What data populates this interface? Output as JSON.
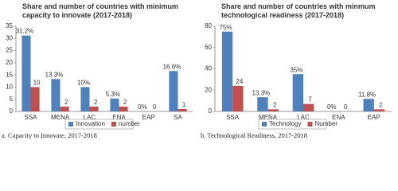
{
  "chart_data": [
    {
      "type": "bar",
      "title": "Share and number of countries with minimum capacity to innovate (2017-2018)",
      "caption": "a. Capacity to Innovate, 2017-2018",
      "categories": [
        "SSA",
        "MENA",
        "LAC",
        "ENA",
        "EAP",
        "SA"
      ],
      "series": [
        {
          "name": "Innovation",
          "color": "#4f81bd",
          "values": [
            31.2,
            13.3,
            10,
            5.3,
            0,
            16.6
          ],
          "value_labels": [
            "31.2%",
            "13.3%",
            "10%",
            "5.3%",
            "0%",
            "16.6%"
          ]
        },
        {
          "name": "number",
          "color": "#c0504d",
          "values": [
            10,
            2,
            2,
            2,
            0,
            1
          ]
        }
      ],
      "ylim": [
        0,
        35
      ],
      "yticks": [
        0,
        5,
        10,
        15,
        20,
        25,
        30,
        35
      ],
      "grid": false,
      "legend": "bottom"
    },
    {
      "type": "bar",
      "title": "Share and number of countries with minmum technological readiness (2017-2018)",
      "caption": "b. Technological Readiness, 2017-2018",
      "categories": [
        "SSA",
        "MENA",
        "LAC",
        "ENA",
        "EAP"
      ],
      "series": [
        {
          "name": "Technology",
          "color": "#4f81bd",
          "values": [
            75,
            13.3,
            35,
            0,
            11.8
          ],
          "value_labels": [
            "75%",
            "13.3%",
            "35%",
            "0%",
            "11.8%"
          ]
        },
        {
          "name": "Number",
          "color": "#c0504d",
          "values": [
            24,
            2,
            7,
            0,
            2
          ]
        }
      ],
      "ylim": [
        0,
        80
      ],
      "yticks": [
        0,
        20,
        40,
        60,
        80
      ],
      "grid": false,
      "legend": "bottom"
    }
  ]
}
